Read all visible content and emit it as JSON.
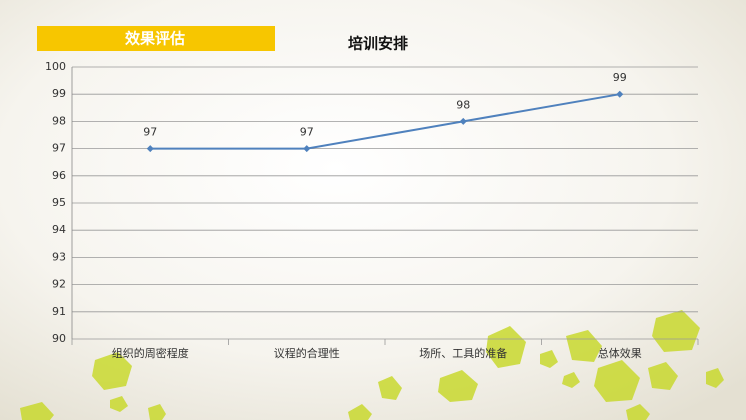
{
  "header": {
    "label": "效果评估"
  },
  "chart_data": {
    "type": "line",
    "title": "培训安排",
    "categories": [
      "组织的周密程度",
      "议程的合理性",
      "场所、工具的准备",
      "总体效果"
    ],
    "values": [
      97,
      97,
      98,
      99
    ],
    "color": "#4f81bd",
    "ylim": [
      90,
      100
    ],
    "yticks": [
      90,
      91,
      92,
      93,
      94,
      95,
      96,
      97,
      98,
      99,
      100
    ],
    "grid": true
  }
}
